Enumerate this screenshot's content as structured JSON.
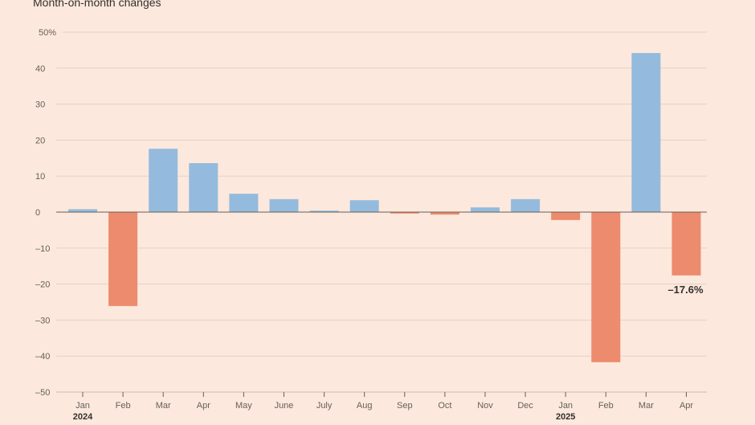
{
  "chart_data": {
    "type": "bar",
    "title": "",
    "subtitle": "Month-on-month changes",
    "xlabel": "",
    "ylabel": "",
    "ylim": [
      -50,
      50
    ],
    "yticks": [
      50,
      40,
      30,
      20,
      10,
      0,
      -10,
      -20,
      -30,
      -40,
      -50
    ],
    "ytick_labels": [
      "50%",
      "40",
      "30",
      "20",
      "10",
      "0",
      "-10",
      "-20",
      "-30",
      "-40",
      "-50"
    ],
    "categories": [
      "Jan",
      "Feb",
      "Mar",
      "Apr",
      "May",
      "June",
      "July",
      "Aug",
      "Sep",
      "Oct",
      "Nov",
      "Dec",
      "Jan",
      "Feb",
      "Mar",
      "Apr"
    ],
    "year_labels": [
      {
        "index": 0,
        "label": "2024"
      },
      {
        "index": 12,
        "label": "2025"
      }
    ],
    "values": [
      0.8,
      -26.1,
      17.6,
      13.6,
      5.1,
      3.6,
      0.4,
      3.3,
      -0.4,
      -0.7,
      1.3,
      3.6,
      -2.2,
      -41.7,
      44.2,
      -17.6
    ],
    "annotations": [
      {
        "index": 15,
        "label": "-17.6%"
      }
    ],
    "grid": true,
    "colors": {
      "positive": "#94bbdd",
      "negative": "#ec8b6d",
      "grid": "#e3d2c6",
      "background": "#fce8dc"
    }
  }
}
